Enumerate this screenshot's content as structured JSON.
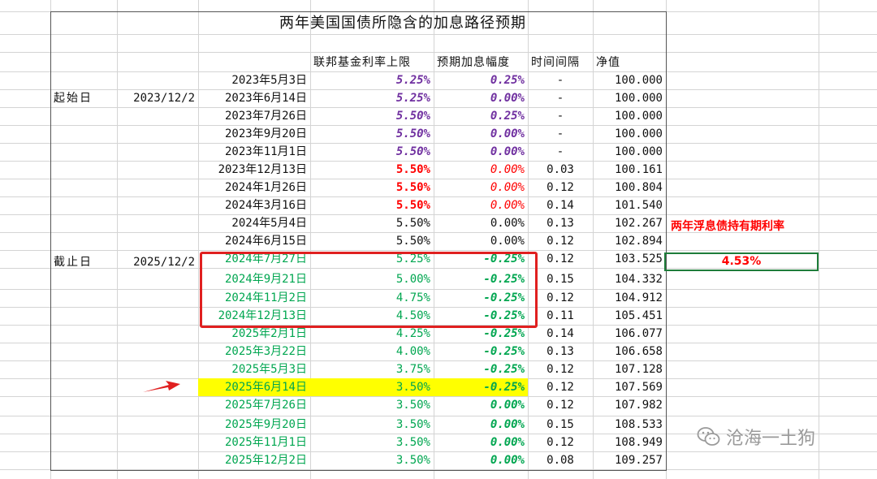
{
  "title": "两年美国国债所隐含的加息路径预期",
  "headers": {
    "fed_rate": "联邦基金利率上限",
    "expected_change": "预期加息幅度",
    "interval": "时间间隔",
    "nav": "净值"
  },
  "start_label": "起始日",
  "start_date": "2023/12/2",
  "end_label": "截止日",
  "end_date": "2025/12/2",
  "rows": [
    {
      "date": "2023年5月3日",
      "rate": "5.25%",
      "change": "0.25%",
      "interval": "-",
      "nav": "100.000"
    },
    {
      "date": "2023年6月14日",
      "rate": "5.25%",
      "change": "0.00%",
      "interval": "-",
      "nav": "100.000"
    },
    {
      "date": "2023年7月26日",
      "rate": "5.50%",
      "change": "0.25%",
      "interval": "-",
      "nav": "100.000"
    },
    {
      "date": "2023年9月20日",
      "rate": "5.50%",
      "change": "0.00%",
      "interval": "-",
      "nav": "100.000"
    },
    {
      "date": "2023年11月1日",
      "rate": "5.50%",
      "change": "0.00%",
      "interval": "-",
      "nav": "100.000"
    },
    {
      "date": "2023年12月13日",
      "rate": "5.50%",
      "change": "0.00%",
      "interval": "0.03",
      "nav": "100.161"
    },
    {
      "date": "2024年1月26日",
      "rate": "5.50%",
      "change": "0.00%",
      "interval": "0.12",
      "nav": "100.804"
    },
    {
      "date": "2024年3月16日",
      "rate": "5.50%",
      "change": "0.00%",
      "interval": "0.14",
      "nav": "101.540"
    },
    {
      "date": "2024年5月4日",
      "rate": "5.50%",
      "change": "0.00%",
      "interval": "0.13",
      "nav": "102.267"
    },
    {
      "date": "2024年6月15日",
      "rate": "5.50%",
      "change": "0.00%",
      "interval": "0.12",
      "nav": "102.894"
    },
    {
      "date": "2024年7月27日",
      "rate": "5.25%",
      "change": "-0.25%",
      "interval": "0.12",
      "nav": "103.525"
    },
    {
      "date": "2024年9月21日",
      "rate": "5.00%",
      "change": "-0.25%",
      "interval": "0.15",
      "nav": "104.332"
    },
    {
      "date": "2024年11月2日",
      "rate": "4.75%",
      "change": "-0.25%",
      "interval": "0.12",
      "nav": "104.912"
    },
    {
      "date": "2024年12月13日",
      "rate": "4.50%",
      "change": "-0.25%",
      "interval": "0.11",
      "nav": "105.451"
    },
    {
      "date": "2025年2月1日",
      "rate": "4.25%",
      "change": "-0.25%",
      "interval": "0.14",
      "nav": "106.077"
    },
    {
      "date": "2025年3月22日",
      "rate": "4.00%",
      "change": "-0.25%",
      "interval": "0.13",
      "nav": "106.658"
    },
    {
      "date": "2025年5月3日",
      "rate": "3.75%",
      "change": "-0.25%",
      "interval": "0.12",
      "nav": "107.128"
    },
    {
      "date": "2025年6月14日",
      "rate": "3.50%",
      "change": "-0.25%",
      "interval": "0.12",
      "nav": "107.569"
    },
    {
      "date": "2025年7月26日",
      "rate": "3.50%",
      "change": "0.00%",
      "interval": "0.12",
      "nav": "107.982"
    },
    {
      "date": "2025年9月20日",
      "rate": "3.50%",
      "change": "0.00%",
      "interval": "0.15",
      "nav": "108.533"
    },
    {
      "date": "2025年11月1日",
      "rate": "3.50%",
      "change": "0.00%",
      "interval": "0.12",
      "nav": "108.949"
    },
    {
      "date": "2025年12月2日",
      "rate": "3.50%",
      "change": "0.00%",
      "interval": "0.08",
      "nav": "109.257"
    }
  ],
  "note": {
    "label": "两年浮息债持有期利率",
    "value": "4.53%"
  },
  "watermark": "沧海一土狗",
  "colors": {
    "purple": "#7030a0",
    "red": "#ff0000",
    "green": "#00a650",
    "highlight": "#ffff00",
    "box": "#e02020"
  }
}
